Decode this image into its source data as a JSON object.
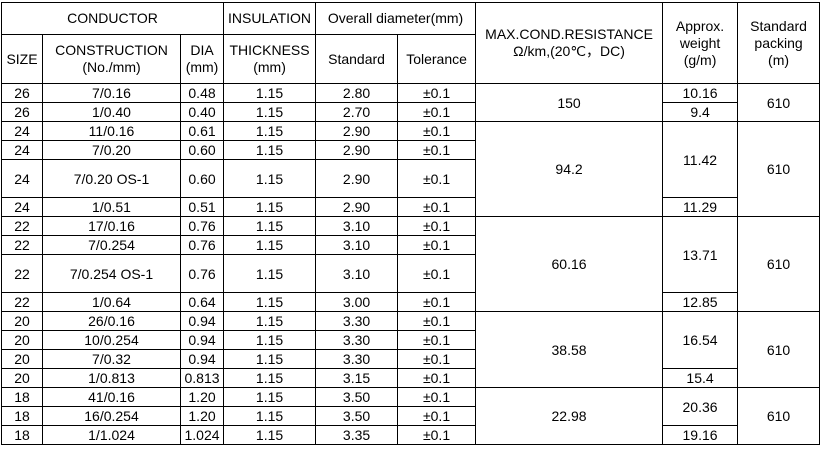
{
  "header": {
    "conductor": "CONDUCTOR",
    "insulation": "INSULATION",
    "overall_diameter": "Overall diameter(mm)",
    "columns": [
      [
        "SIZE"
      ],
      [
        "CONSTRUCTION",
        "(No./mm)"
      ],
      [
        "DIA",
        "(mm)"
      ],
      [
        "THICKNESS",
        "(mm)"
      ],
      [
        "Standard"
      ],
      [
        "Tolerance"
      ]
    ],
    "resistance": [
      "MAX.COND.RESISTANCE",
      "Ω/km,(20℃，DC)"
    ],
    "weight": [
      "Approx.",
      "weight",
      "(g/m)"
    ],
    "packing": [
      "Standard",
      "packing",
      "(m)"
    ]
  },
  "groups": [
    {
      "rows": [
        [
          "26",
          "7/0.16",
          "0.48",
          "1.15",
          "2.80",
          "±0.1"
        ],
        [
          "26",
          "1/0.40",
          "0.40",
          "1.15",
          "2.70",
          "±0.1"
        ]
      ],
      "resistance": "150",
      "weights": [
        "10.16",
        "9.4"
      ],
      "packing": "610"
    },
    {
      "rows": [
        [
          "24",
          "11/0.16",
          "0.61",
          "1.15",
          "2.90",
          "±0.1"
        ],
        [
          "24",
          "7/0.20",
          "0.60",
          "1.15",
          "2.90",
          "±0.1"
        ],
        [
          "24",
          "7/0.20 OS-1",
          "0.60",
          "1.15",
          "2.90",
          "±0.1"
        ],
        [
          "24",
          "1/0.51",
          "0.51",
          "1.15",
          "2.90",
          "±0.1"
        ]
      ],
      "resistance": "94.2",
      "weights": [
        "11.42",
        "11.29"
      ],
      "packing": "610"
    },
    {
      "rows": [
        [
          "22",
          "17/0.16",
          "0.76",
          "1.15",
          "3.10",
          "±0.1"
        ],
        [
          "22",
          "7/0.254",
          "0.76",
          "1.15",
          "3.10",
          "±0.1"
        ],
        [
          "22",
          "7/0.254 OS-1",
          "0.76",
          "1.15",
          "3.10",
          "±0.1"
        ],
        [
          "22",
          "1/0.64",
          "0.64",
          "1.15",
          "3.00",
          "±0.1"
        ]
      ],
      "resistance": "60.16",
      "weights": [
        "13.71",
        "12.85"
      ],
      "packing": "610"
    },
    {
      "rows": [
        [
          "20",
          "26/0.16",
          "0.94",
          "1.15",
          "3.30",
          "±0.1"
        ],
        [
          "20",
          "10/0.254",
          "0.94",
          "1.15",
          "3.30",
          "±0.1"
        ],
        [
          "20",
          "7/0.32",
          "0.94",
          "1.15",
          "3.30",
          "±0.1"
        ],
        [
          "20",
          "1/0.813",
          "0.813",
          "1.15",
          "3.15",
          "±0.1"
        ]
      ],
      "resistance": "38.58",
      "weights": [
        "16.54",
        "15.4"
      ],
      "packing": "610"
    },
    {
      "rows": [
        [
          "18",
          "41/0.16",
          "1.20",
          "1.15",
          "3.50",
          "±0.1"
        ],
        [
          "18",
          "16/0.254",
          "1.20",
          "1.15",
          "3.50",
          "±0.1"
        ],
        [
          "18",
          "1/1.024",
          "1.024",
          "1.15",
          "3.35",
          "±0.1"
        ]
      ],
      "resistance": "22.98",
      "weights": [
        "20.36",
        "19.16"
      ],
      "packing": "610"
    }
  ]
}
